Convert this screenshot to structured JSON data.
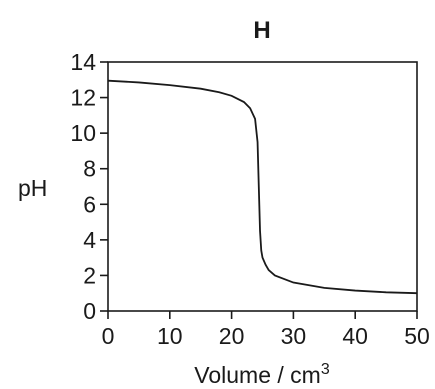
{
  "chart_data": {
    "type": "line",
    "title": "H",
    "xlabel": "Volume / cm",
    "xlabel_superscript": "3",
    "ylabel": "pH",
    "xlim": [
      0,
      50
    ],
    "ylim": [
      0,
      14
    ],
    "x_ticks": [
      0,
      10,
      20,
      30,
      40,
      50
    ],
    "y_ticks": [
      0,
      2,
      4,
      6,
      8,
      10,
      12,
      14
    ],
    "grid": false,
    "series": [
      {
        "x": [
          0,
          5,
          10,
          15,
          18,
          20,
          22,
          23,
          23.8,
          24.2,
          24.4,
          24.6,
          24.8,
          25,
          25.5,
          26,
          27,
          30,
          35,
          40,
          45,
          50
        ],
        "y": [
          12.95,
          12.85,
          12.7,
          12.5,
          12.3,
          12.1,
          11.75,
          11.4,
          10.8,
          9.5,
          7.0,
          4.5,
          3.4,
          3.0,
          2.6,
          2.3,
          2.0,
          1.6,
          1.3,
          1.15,
          1.05,
          1.0
        ]
      }
    ]
  }
}
